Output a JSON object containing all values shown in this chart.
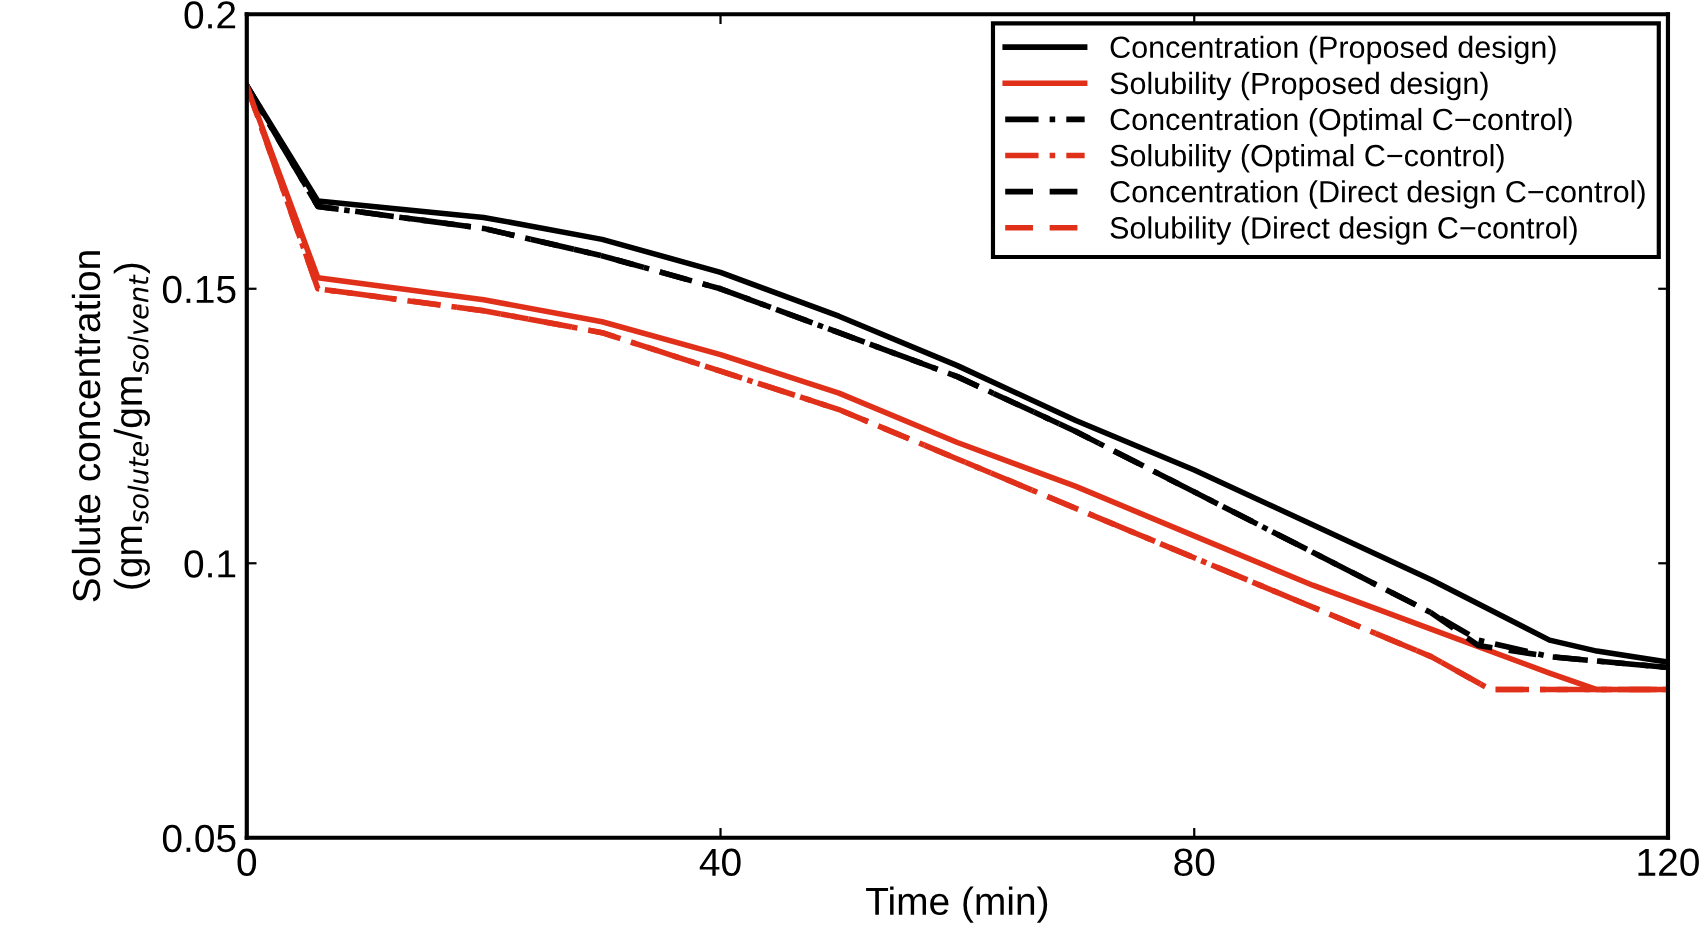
{
  "chart_data": {
    "type": "line",
    "xlabel": "Time (min)",
    "ylabel": "Solute concentration\n(gm$_{solute}$/gm$_{solvent}$)",
    "xlim": [
      0,
      120
    ],
    "xticks": [
      0,
      40,
      80,
      120
    ],
    "ylim": [
      0.05,
      0.2
    ],
    "yticks": [
      0.05,
      0.1,
      0.15,
      0.2
    ],
    "grid": false,
    "legend": "top right",
    "series": [
      {
        "name": "Concentration (Proposed design)",
        "color": "#000000",
        "line_style": "solid",
        "x": [
          0,
          6,
          20,
          30,
          40,
          50,
          60,
          70,
          80,
          90,
          100,
          110,
          114,
          120
        ],
        "values": [
          0.187,
          0.166,
          0.163,
          0.159,
          0.153,
          0.145,
          0.136,
          0.126,
          0.117,
          0.107,
          0.097,
          0.086,
          0.084,
          0.082
        ]
      },
      {
        "name": "Solubility (Proposed design)",
        "color": "#e0301a",
        "line_style": "solid",
        "x": [
          0,
          6,
          20,
          30,
          40,
          50,
          60,
          70,
          80,
          90,
          100,
          110,
          114,
          120
        ],
        "values": [
          0.187,
          0.152,
          0.148,
          0.144,
          0.138,
          0.131,
          0.122,
          0.114,
          0.105,
          0.096,
          0.088,
          0.08,
          0.077,
          0.077
        ]
      },
      {
        "name": "Concentration (Optimal C−control)",
        "color": "#000000",
        "line_style": "dashdot",
        "x": [
          0,
          6,
          20,
          30,
          40,
          50,
          60,
          70,
          80,
          90,
          100,
          104,
          110,
          120
        ],
        "values": [
          0.187,
          0.165,
          0.161,
          0.156,
          0.15,
          0.142,
          0.134,
          0.124,
          0.113,
          0.102,
          0.091,
          0.086,
          0.083,
          0.081
        ]
      },
      {
        "name": "Solubility (Optimal C−control)",
        "color": "#e0301a",
        "line_style": "dashdot",
        "x": [
          0,
          6,
          20,
          30,
          40,
          50,
          60,
          70,
          80,
          90,
          100,
          105,
          120
        ],
        "values": [
          0.187,
          0.15,
          0.146,
          0.142,
          0.135,
          0.128,
          0.119,
          0.11,
          0.101,
          0.092,
          0.083,
          0.077,
          0.077
        ]
      },
      {
        "name": "Concentration (Direct design C−control)",
        "color": "#000000",
        "line_style": "dashed",
        "x": [
          0,
          6,
          20,
          30,
          40,
          50,
          60,
          70,
          80,
          90,
          100,
          104,
          110,
          120
        ],
        "values": [
          0.187,
          0.165,
          0.161,
          0.156,
          0.15,
          0.142,
          0.134,
          0.124,
          0.113,
          0.102,
          0.091,
          0.085,
          0.083,
          0.081
        ]
      },
      {
        "name": "Solubility (Direct design C−control)",
        "color": "#e0301a",
        "line_style": "dashed",
        "x": [
          0,
          6,
          20,
          30,
          40,
          50,
          60,
          70,
          80,
          90,
          100,
          105,
          120
        ],
        "values": [
          0.187,
          0.15,
          0.146,
          0.142,
          0.135,
          0.128,
          0.119,
          0.11,
          0.101,
          0.092,
          0.083,
          0.077,
          0.077
        ]
      }
    ]
  }
}
